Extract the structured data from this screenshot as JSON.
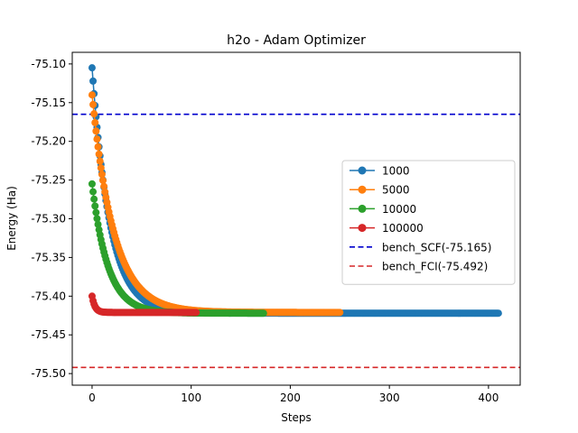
{
  "chart_data": {
    "type": "scatter",
    "title": "h2o - Adam Optimizer",
    "xlabel": "Steps",
    "ylabel": "Energy (Ha)",
    "xlim": [
      -20,
      432
    ],
    "ylim": [
      -75.515,
      -75.085
    ],
    "x_ticks": [
      0,
      100,
      200,
      300,
      400
    ],
    "x_tick_labels": [
      "0",
      "100",
      "200",
      "300",
      "400"
    ],
    "y_ticks": [
      -75.1,
      -75.15,
      -75.2,
      -75.25,
      -75.3,
      -75.35,
      -75.4,
      -75.45,
      -75.5
    ],
    "y_tick_labels": [
      "-75.10",
      "-75.15",
      "-75.20",
      "-75.25",
      "-75.30",
      "-75.35",
      "-75.40",
      "-75.45",
      "-75.50"
    ],
    "grid": false,
    "legend_position": "center-right",
    "series": [
      {
        "name": "1000",
        "color": "#1f77b4",
        "steps": 410,
        "start": -75.105,
        "final": -75.422,
        "decay_steps": 18
      },
      {
        "name": "5000",
        "color": "#ff7f0e",
        "steps": 250,
        "start": -75.14,
        "final": -75.421,
        "decay_steps": 22
      },
      {
        "name": "10000",
        "color": "#2ca02c",
        "steps": 173,
        "start": -75.255,
        "final": -75.422,
        "decay_steps": 16
      },
      {
        "name": "100000",
        "color": "#d62728",
        "steps": 105,
        "start": -75.4,
        "final": -75.421,
        "decay_steps": 3
      }
    ],
    "reference_lines": [
      {
        "name": "bench_SCF(-75.165)",
        "value": -75.165,
        "color": "#0000cd",
        "style": "dashed"
      },
      {
        "name": "bench_FCI(-75.492)",
        "value": -75.492,
        "color": "#d62728",
        "style": "dashed"
      }
    ]
  }
}
